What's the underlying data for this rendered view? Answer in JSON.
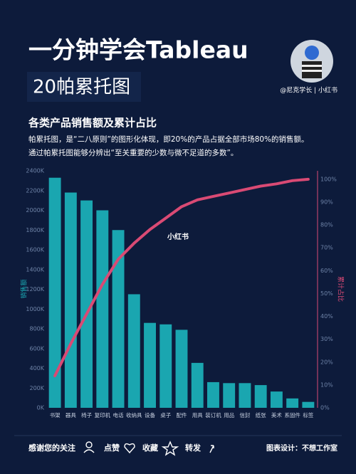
{
  "header": {
    "title": "一分钟学会Tableau",
    "subtitle": "20帕累托图",
    "account": "@尼克学长 | 小红书"
  },
  "chart_data": {
    "type": "pareto",
    "title": "各类产品销售额及累计占比",
    "description": [
      "帕累托图，是“二八原则”的图形化体现，即20%的产品占据全部市场80%的销售额。",
      "通过帕累托图能够分辨出“至关重要的少数与微不足道的多数”。"
    ],
    "categories": [
      "书架",
      "器具",
      "椅子",
      "复印机",
      "电话",
      "收纳具",
      "设备",
      "桌子",
      "配件",
      "用具",
      "装订机",
      "用品",
      "信封",
      "纸张",
      "美术",
      "系固件",
      "标签"
    ],
    "series": [
      {
        "name": "销售额",
        "color": "#1aa6b0",
        "values": [
          2330,
          2180,
          2100,
          2000,
          1800,
          1150,
          860,
          845,
          790,
          455,
          260,
          250,
          250,
          230,
          165,
          95,
          60
        ]
      },
      {
        "name": "累计占比",
        "color": "#d94a74",
        "axis": "y2",
        "values": [
          14,
          28,
          41,
          54,
          65,
          72,
          78,
          83,
          88,
          91,
          92.5,
          94,
          95.5,
          97,
          98,
          99.4,
          100
        ]
      }
    ],
    "ylim": [
      0,
      2400
    ],
    "yticks": [
      {
        "value": 0,
        "label": "0K"
      },
      {
        "value": 200,
        "label": "200K"
      },
      {
        "value": 400,
        "label": "400K"
      },
      {
        "value": 600,
        "label": "600K"
      },
      {
        "value": 800,
        "label": "800K"
      },
      {
        "value": 1000,
        "label": "1000K"
      },
      {
        "value": 1200,
        "label": "1200K"
      },
      {
        "value": 1400,
        "label": "1400K"
      },
      {
        "value": 1600,
        "label": "1600K"
      },
      {
        "value": 1800,
        "label": "1800K"
      },
      {
        "value": 2000,
        "label": "2000K"
      },
      {
        "value": 2200,
        "label": "2200K"
      },
      {
        "value": 2400,
        "label": "2400K"
      }
    ],
    "y2lim": [
      0,
      103.7
    ],
    "y2ticks": [
      {
        "value": 0,
        "label": "0%"
      },
      {
        "value": 10,
        "label": "10%"
      },
      {
        "value": 20,
        "label": "20%"
      },
      {
        "value": 30,
        "label": "30%"
      },
      {
        "value": 40,
        "label": "40%"
      },
      {
        "value": 50,
        "label": "50%"
      },
      {
        "value": 60,
        "label": "60%"
      },
      {
        "value": 70,
        "label": "70%"
      },
      {
        "value": 80,
        "label": "80%"
      },
      {
        "value": 90,
        "label": "90%"
      },
      {
        "value": 100,
        "label": "100%"
      }
    ],
    "watermark": "小红书"
  },
  "footer": {
    "thanks": "感谢您的关注",
    "like": "点赞",
    "collect": "收藏",
    "share": "转发",
    "credit": "图表设计：不想工作室"
  }
}
